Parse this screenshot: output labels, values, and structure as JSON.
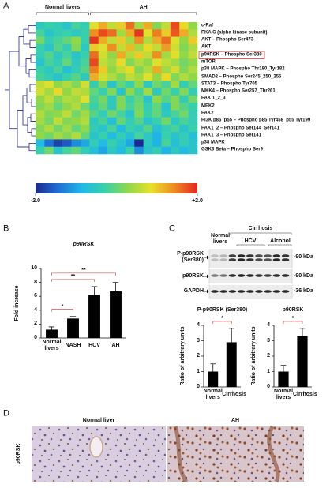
{
  "panel_labels": [
    "A",
    "B",
    "C",
    "D"
  ],
  "chart_data": [
    {
      "type": "heatmap",
      "groups": [
        {
          "name": "Normal livers",
          "values": [
            [
              -0.5,
              -0.3,
              -0.4,
              -0.6,
              -0.2,
              -0.4
            ],
            [
              -0.2,
              -0.6,
              -0.4,
              -0.3,
              -0.5,
              -0.3
            ],
            [
              0.1,
              -0.4,
              -0.2,
              0.0,
              0.3,
              -0.3
            ],
            [
              -0.3,
              -0.6,
              -0.1,
              -0.4,
              0.2,
              -0.5
            ],
            [
              -0.4,
              -0.1,
              -0.5,
              -0.2,
              -0.6,
              -0.3
            ],
            [
              -0.6,
              -0.2,
              -0.4,
              0.0,
              -0.5,
              -0.2
            ],
            [
              -0.3,
              -0.5,
              -0.2,
              -0.7,
              -0.4,
              -0.1
            ],
            [
              -0.2,
              -0.4,
              -0.6,
              -0.3,
              -0.1,
              -0.5
            ],
            [
              0.6,
              0.8,
              0.3,
              0.5,
              0.2,
              0.7
            ],
            [
              0.7,
              0.4,
              0.9,
              0.3,
              0.6,
              0.5
            ],
            [
              0.3,
              0.6,
              0.2,
              0.5,
              0.4,
              0.8
            ],
            [
              0.2,
              0.4,
              0.0,
              0.3,
              0.5,
              0.1
            ],
            [
              0.5,
              0.2,
              0.3,
              0.6,
              0.1,
              0.4
            ],
            [
              0.4,
              0.1,
              0.6,
              0.2,
              0.3,
              0.5
            ],
            [
              0.2,
              0.5,
              0.1,
              0.4,
              0.0,
              0.3
            ],
            [
              0.3,
              0.1,
              0.4,
              0.2,
              0.5,
              0.0
            ],
            [
              -0.8,
              -1.4,
              -1.8,
              -1.6,
              -1.2,
              -1.0
            ],
            [
              -0.3,
              0.1,
              -0.6,
              -0.2,
              0.0,
              -0.4
            ]
          ]
        },
        {
          "name": "AH",
          "values": [
            [
              0.8,
              1.2,
              0.6,
              1.0,
              1.6,
              0.4,
              1.2,
              0.2,
              0.6,
              1.8,
              0.9,
              0.3
            ],
            [
              1.4,
              1.8,
              1.6,
              0.4,
              1.2,
              1.9,
              0.8,
              1.5,
              1.0,
              1.7,
              1.2,
              0.5
            ],
            [
              1.9,
              1.2,
              0.6,
              1.0,
              0.4,
              1.4,
              0.5,
              1.2,
              1.6,
              0.8,
              0.3,
              1.0
            ],
            [
              1.0,
              0.8,
              1.4,
              0.6,
              1.1,
              0.4,
              0.9,
              0.6,
              1.3,
              0.7,
              0.2,
              0.5
            ],
            [
              1.6,
              0.7,
              0.3,
              1.2,
              0.5,
              1.0,
              0.6,
              1.4,
              0.4,
              0.8,
              0.3,
              0.6
            ],
            [
              1.8,
              0.6,
              0.4,
              0.9,
              0.2,
              0.5,
              0.3,
              0.8,
              0.6,
              0.4,
              0.1,
              0.3
            ],
            [
              1.5,
              1.0,
              0.3,
              0.6,
              0.9,
              0.2,
              0.5,
              1.2,
              0.4,
              0.7,
              0.2,
              0.5
            ],
            [
              1.2,
              0.7,
              0.5,
              0.2,
              0.6,
              0.4,
              0.8,
              0.3,
              0.9,
              0.2,
              0.5,
              0.3
            ],
            [
              -0.4,
              0.2,
              -0.6,
              0.0,
              -0.3,
              0.3,
              -0.5,
              0.1,
              -0.2,
              0.4,
              -0.4,
              0.0
            ],
            [
              0.0,
              -0.3,
              0.2,
              -0.6,
              0.3,
              -0.2,
              0.4,
              -0.5,
              0.1,
              -0.3,
              0.2,
              -0.4
            ],
            [
              -0.2,
              0.1,
              -0.5,
              0.2,
              -0.3,
              0.0,
              -0.6,
              0.3,
              -0.1,
              0.2,
              -0.4,
              0.1
            ],
            [
              -0.3,
              0.0,
              -0.5,
              0.2,
              -0.2,
              0.1,
              -0.4,
              0.0,
              -0.6,
              0.2,
              -0.1,
              -0.3
            ],
            [
              -0.1,
              -0.4,
              0.1,
              -0.2,
              -0.6,
              0.2,
              -0.3,
              0.0,
              -0.5,
              -0.2,
              0.1,
              -0.4
            ],
            [
              -0.5,
              -0.2,
              -0.7,
              0.0,
              -0.4,
              -0.1,
              -0.6,
              -0.3,
              0.1,
              -0.5,
              -0.2,
              -0.4
            ],
            [
              -0.4,
              -0.6,
              -0.2,
              -0.8,
              -0.3,
              -0.5,
              -0.1,
              -0.7,
              -0.4,
              -0.2,
              -0.6,
              -0.3
            ],
            [
              -0.6,
              -0.3,
              -0.8,
              -0.4,
              -0.7,
              -0.2,
              -0.5,
              -0.9,
              -0.3,
              -0.6,
              -0.4,
              -0.7
            ],
            [
              -0.4,
              -0.8,
              -0.3,
              -0.6,
              -1.0,
              -2.0,
              -0.5,
              -0.9,
              -0.2,
              -0.7,
              -0.4,
              -0.6
            ],
            [
              -0.7,
              -1.0,
              -0.5,
              -0.8,
              -0.3,
              -1.2,
              -0.6,
              -0.4,
              -0.9,
              -0.5,
              -0.8,
              -0.6
            ]
          ]
        }
      ],
      "rows": [
        "c-Raf",
        "PKA C (alpha kinase subunit)",
        "AKT – Phospho Ser473",
        "AKT",
        "p90RSK – Phospho Ser380",
        "mTOR",
        "p38 MAPK – Phospho Thr180_Tyr182",
        "SMAD2 – Phospho Ser245_250_255",
        "STAT3 – Phospho Tyr705",
        "MKK4 – Phospho Ser257_Thr261",
        "PAK 1_2_3",
        "MEK2",
        "PAK2",
        "PI3K p85_p55 – Phospho p85 Tyr458_p55 Tyr199",
        "PAK1_2 – Phospho Ser144_Ser141",
        "PAK1_3 – Phospho Ser141",
        "p38 MAPK",
        "GSK3 Beta – Phospho Ser9"
      ],
      "zlim": [
        -2,
        2
      ],
      "zticks": [
        {
          "value": -2,
          "label": "-2.0"
        },
        {
          "value": 2,
          "label": "+2.0"
        }
      ],
      "colormap": [
        "#1b2a8f",
        "#1f6fd6",
        "#1fb8e8",
        "#39d1a8",
        "#8fd84a",
        "#e8e02a",
        "#f08a22",
        "#e3261e"
      ]
    },
    {
      "type": "bar",
      "title": "p90RSK",
      "y_label": "Fold increase",
      "categories": [
        "Normal livers",
        "NASH",
        "HCV",
        "AH"
      ],
      "values": [
        1.2,
        2.8,
        6.2,
        6.7
      ],
      "errors": [
        0.4,
        0.3,
        1.2,
        1.3
      ],
      "color": "#000000",
      "ylim": [
        0,
        10
      ],
      "yticks": [
        0,
        2,
        4,
        6,
        8,
        10
      ],
      "annotations": [
        {
          "text": "*",
          "between": [
            0,
            1
          ]
        },
        {
          "text": "**",
          "between": [
            0,
            2
          ]
        },
        {
          "text": "**",
          "between": [
            0,
            3
          ]
        }
      ]
    },
    {
      "type": "bar",
      "title": "P-p90RSK (Ser380)",
      "y_label": "Ratio of arbitrary units",
      "categories": [
        "Normal livers",
        "Cirrhosis"
      ],
      "values": [
        1.0,
        2.9
      ],
      "errors": [
        0.5,
        0.9
      ],
      "color": "#000000",
      "ylim": [
        0,
        4
      ],
      "yticks": [
        0,
        1,
        2,
        3,
        4
      ],
      "annotations": [
        {
          "text": "*",
          "between": [
            0,
            1
          ]
        }
      ]
    },
    {
      "type": "bar",
      "title": "p90RSK",
      "y_label": "Ratio of arbitrary units",
      "categories": [
        "Normal livers",
        "Cirrhosis"
      ],
      "values": [
        1.0,
        3.3
      ],
      "errors": [
        0.4,
        0.5
      ],
      "color": "#000000",
      "ylim": [
        0,
        4
      ],
      "yticks": [
        0,
        1,
        2,
        3,
        4
      ],
      "annotations": [
        {
          "text": "*",
          "between": [
            0,
            1
          ]
        }
      ]
    }
  ],
  "blot": {
    "groups": [
      "Normal livers",
      "Cirrhosis"
    ],
    "subgroups": [
      "HCV",
      "Alcohol"
    ],
    "rows": [
      "P-p90RSK (Ser380)",
      "p90RSK",
      "GAPDH"
    ],
    "sizes": [
      "-90 kDa",
      "-90 kDa",
      "-36 kDa"
    ]
  },
  "histology": {
    "columns": [
      "Normal liver",
      "AH"
    ],
    "stain": "p90RSK"
  }
}
